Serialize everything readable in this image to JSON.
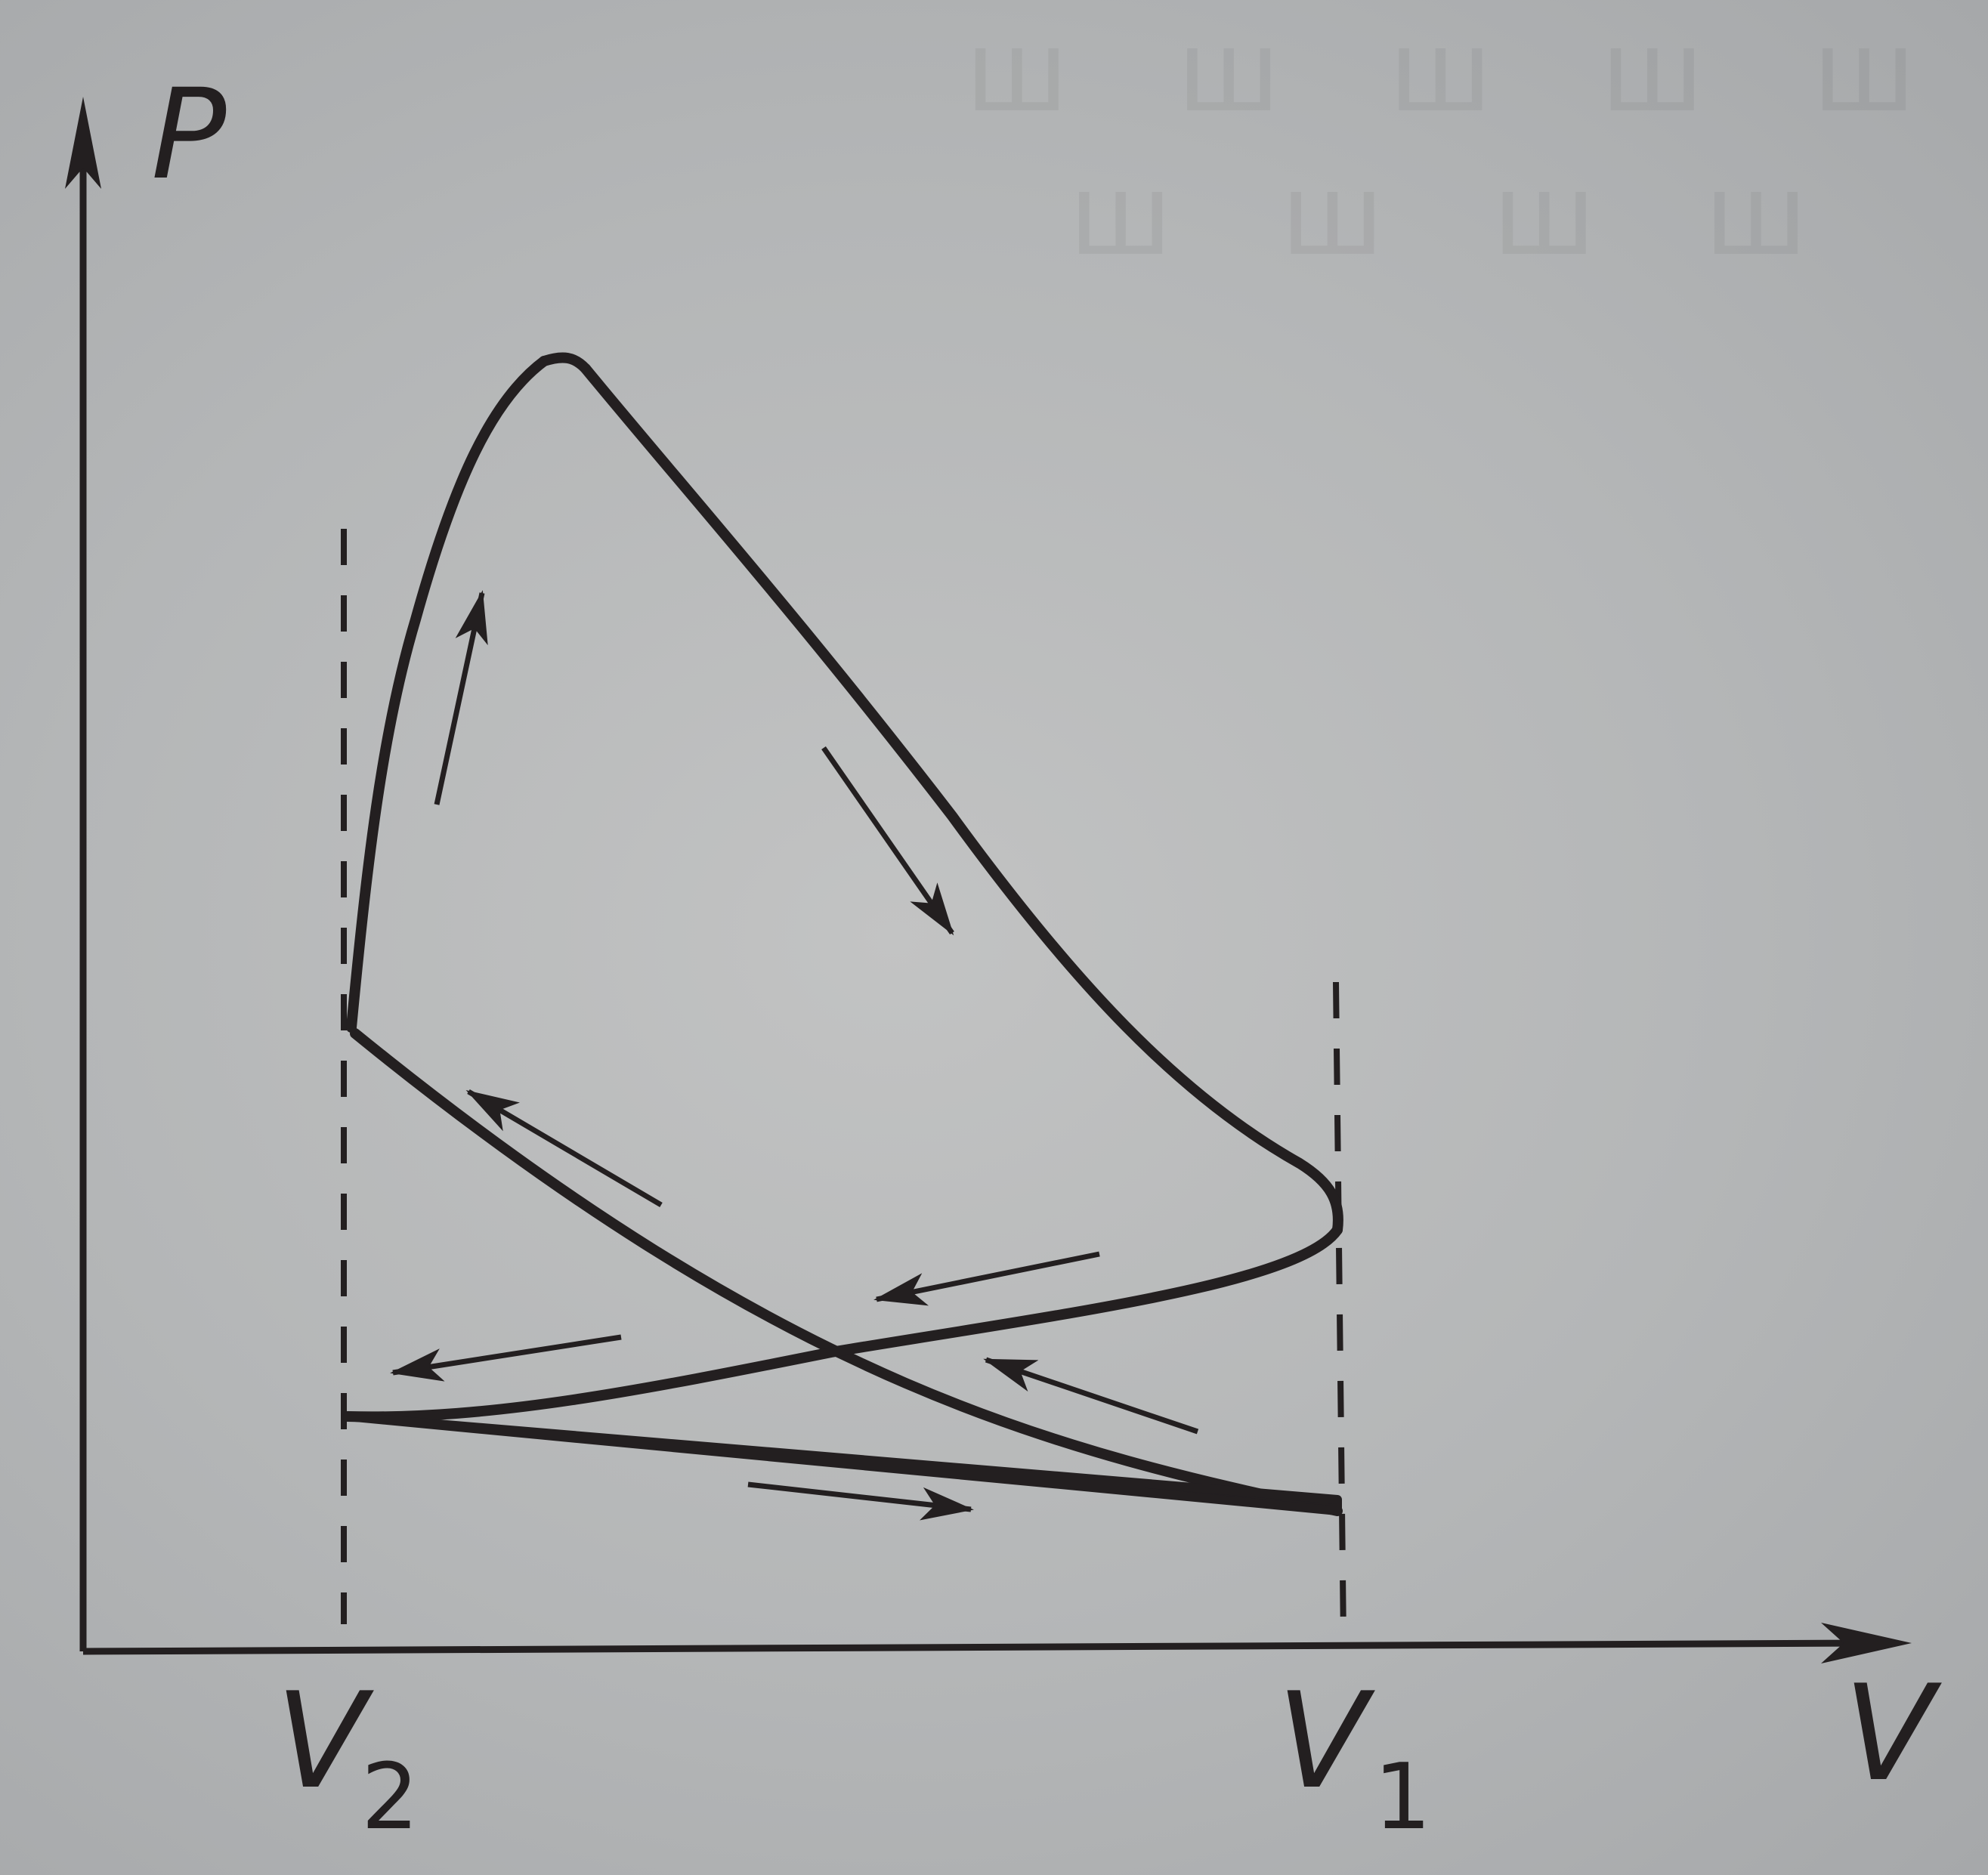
{
  "labels": {
    "p_axis": "P",
    "v_axis": "V",
    "v2": "V",
    "v2_sub": "2",
    "v1": "V",
    "v1_sub": "1"
  },
  "colors": {
    "ink": "#231f20",
    "paper": "#b9bbbc"
  }
}
